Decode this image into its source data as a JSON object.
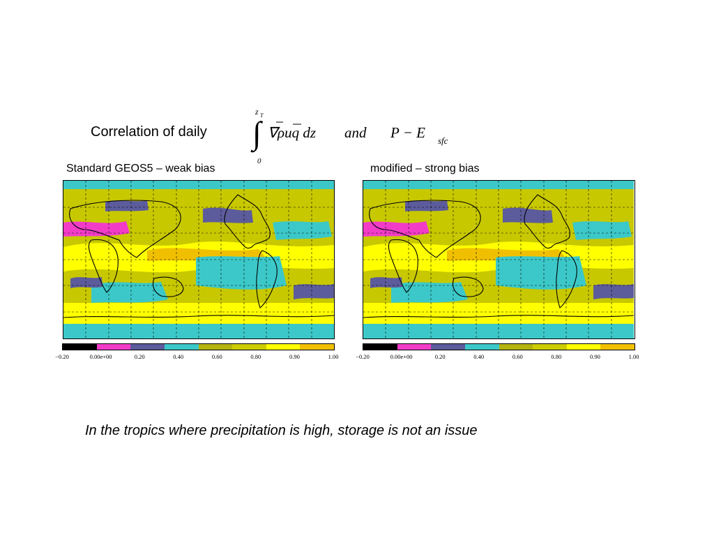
{
  "title": {
    "prefix": "Correlation of daily",
    "formula_upper_limit": "z",
    "formula_upper_sub": "T",
    "formula_lower_limit": "0",
    "formula_body": "∇ρuq dz",
    "formula_and": "and",
    "formula_rhs": "P − E",
    "formula_rhs_sub": "sfc"
  },
  "panels": [
    {
      "label": "Standard GEOS5 – weak bias"
    },
    {
      "label": "modified – strong bias"
    }
  ],
  "colorbar": {
    "ticks": [
      "−0.20",
      "0.00e+00",
      "0.20",
      "0.40",
      "0.60",
      "0.80",
      "0.90",
      "1.00"
    ],
    "colors": [
      "#000000",
      "#f23cc8",
      "#5c5c9c",
      "#3cc8c8",
      "#b4b40e",
      "#cccc00",
      "#ffff00",
      "#f0c000"
    ]
  },
  "caption": "In the tropics where precipitation is high, storage is not an issue"
}
